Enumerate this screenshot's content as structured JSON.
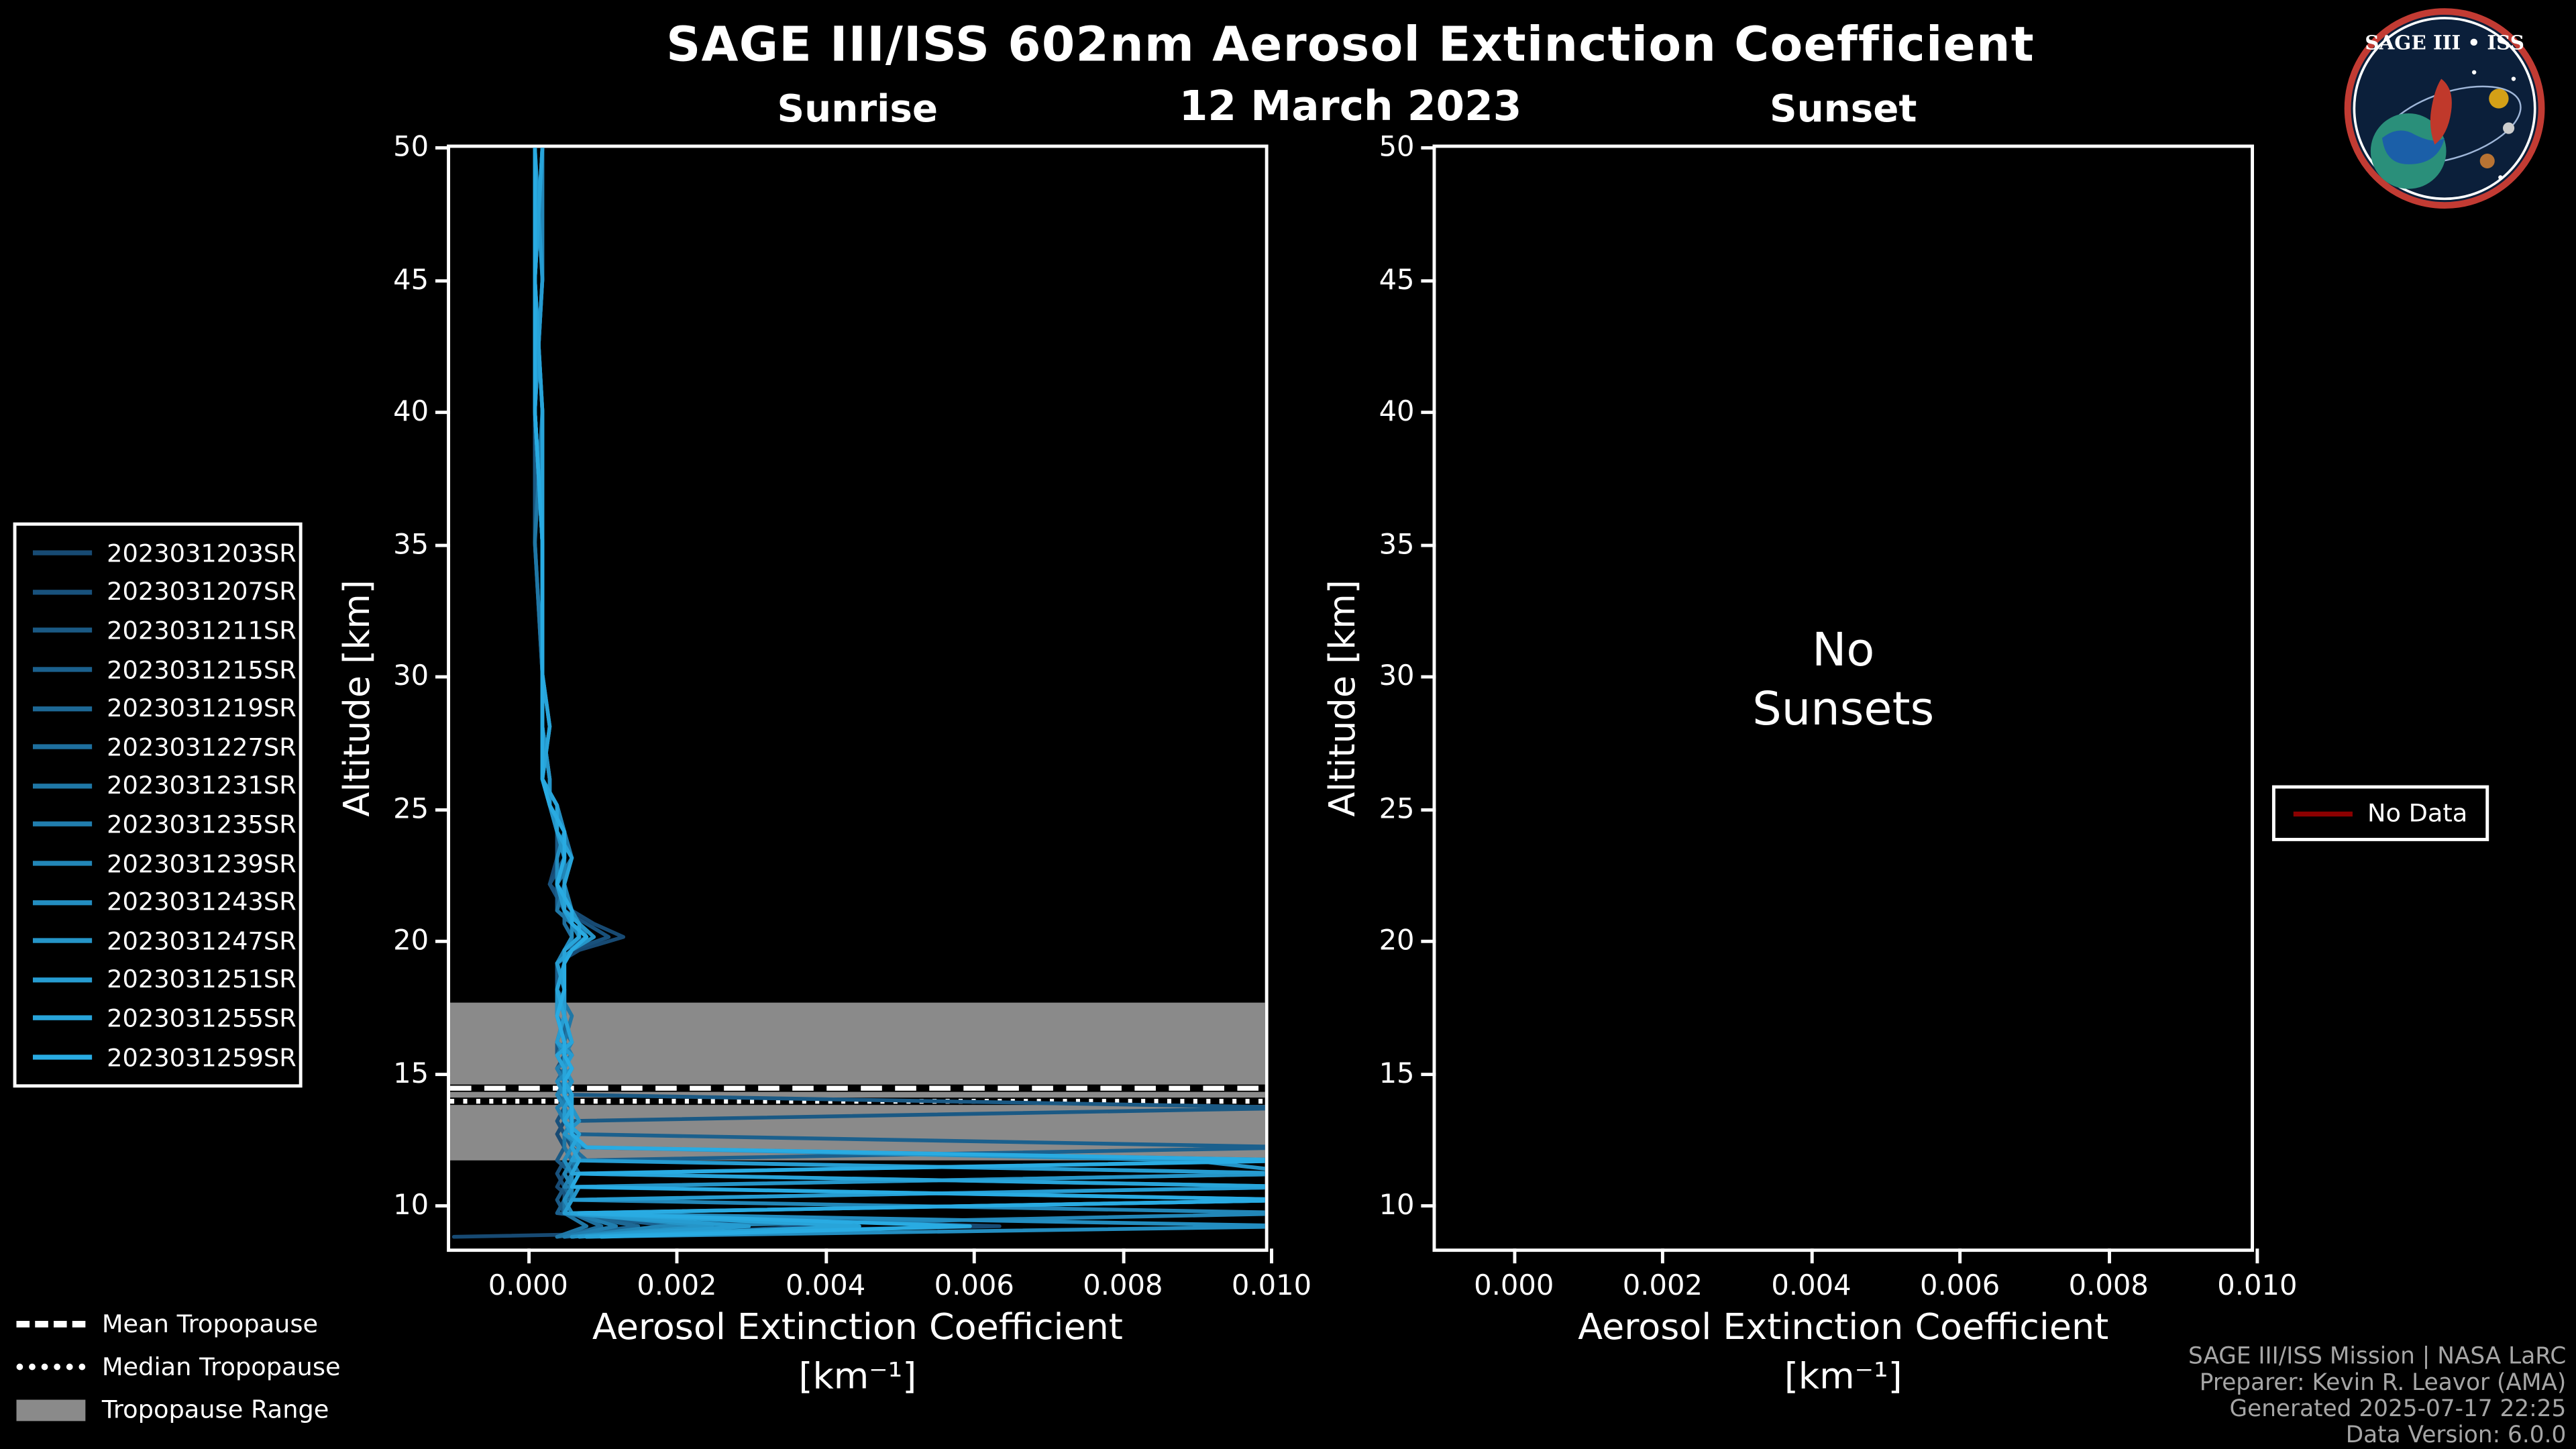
{
  "header": {
    "title": "SAGE III/ISS 602nm Aerosol Extinction Coefficient",
    "date": "12 March 2023"
  },
  "colors": {
    "background": "#000000",
    "text": "#ffffff",
    "footer_text": "#a6a6a6",
    "band": "#8a8a8a",
    "axis": "#ffffff"
  },
  "legends": {
    "tropopause": {
      "mean": "Mean Tropopause",
      "median": "Median Tropopause",
      "range": "Tropopause Range"
    },
    "no_data": {
      "label": "No Data",
      "color": "#8B0000"
    }
  },
  "footer": {
    "line1": "SAGE III/ISS Mission | NASA LaRC",
    "line2": "Preparer: Kevin R. Leavor (AMA)",
    "line3": "Generated 2025-07-17 22:25",
    "line4": "Data Version: 6.0.0"
  },
  "logo": {
    "title": "SAGE III • ISS"
  },
  "chart_data": [
    {
      "id": "sunrise",
      "type": "line",
      "title": "Sunrise",
      "xlabel": "Aerosol Extinction Coefficient",
      "xlabel_units": "[km⁻¹]",
      "ylabel": "Altitude [km]",
      "xlim": [
        -0.00105,
        0.01
      ],
      "ylim": [
        8.15,
        50
      ],
      "xticks": [
        0.0,
        0.002,
        0.004,
        0.006,
        0.008,
        0.01
      ],
      "xtick_labels": [
        "0.000",
        "0.002",
        "0.004",
        "0.006",
        "0.008",
        "0.010"
      ],
      "yticks": [
        10,
        15,
        20,
        25,
        30,
        35,
        40,
        45,
        50
      ],
      "ytick_labels": [
        "10",
        "15",
        "20",
        "25",
        "30",
        "35",
        "40",
        "45",
        "50"
      ],
      "grid": false,
      "ext_scale": 0.0001,
      "alt_grid": [
        50,
        45,
        40,
        35,
        30,
        28,
        26,
        25,
        24,
        23,
        22,
        21,
        20.5,
        20,
        19.5,
        19,
        18,
        17,
        16,
        15.5,
        15,
        14.5,
        14,
        13.5,
        13,
        12.5,
        12,
        11.5,
        11,
        10.5,
        10,
        9.5,
        9,
        8.6
      ],
      "tropopause": {
        "mean_km": 14.25,
        "median_km": 13.75,
        "range_km": [
          11.5,
          17.5
        ]
      },
      "series": [
        {
          "name": "2023031203SR",
          "color": "#174A73",
          "values": [
            2,
            1,
            1,
            1,
            2,
            2,
            2,
            3,
            5,
            4,
            3,
            6,
            9,
            13,
            7,
            4,
            4,
            5,
            4,
            6,
            4,
            5,
            5,
            6,
            5,
            4,
            5,
            6,
            5,
            4,
            6,
            5,
            64,
            -10
          ]
        },
        {
          "name": "2023031207SR",
          "color": "#18517C",
          "values": [
            1,
            1,
            1,
            2,
            2,
            2,
            2,
            3,
            4,
            5,
            3,
            5,
            8,
            11,
            6,
            5,
            4,
            4,
            5,
            5,
            4,
            6,
            5,
            5,
            4,
            5,
            6,
            5,
            4,
            5,
            5,
            6,
            40,
            8
          ]
        },
        {
          "name": "2023031211SR",
          "color": "#1A5984",
          "values": [
            2,
            2,
            1,
            1,
            2,
            2,
            3,
            3,
            4,
            4,
            4,
            5,
            7,
            9,
            6,
            4,
            5,
            5,
            4,
            4,
            5,
            5,
            6,
            106,
            6,
            5,
            5,
            4,
            6,
            5,
            4,
            5,
            30,
            5
          ]
        },
        {
          "name": "2023031215SR",
          "color": "#1B608D",
          "values": [
            1,
            1,
            2,
            2,
            2,
            2,
            2,
            4,
            5,
            5,
            4,
            4,
            6,
            8,
            5,
            4,
            4,
            5,
            5,
            6,
            4,
            5,
            5,
            6,
            5,
            6,
            106,
            7,
            5,
            6,
            5,
            4,
            20,
            6
          ]
        },
        {
          "name": "2023031219SR",
          "color": "#1D6895",
          "values": [
            2,
            1,
            1,
            2,
            2,
            3,
            2,
            3,
            4,
            6,
            4,
            5,
            6,
            7,
            5,
            5,
            4,
            4,
            6,
            5,
            5,
            4,
            6,
            5,
            6,
            5,
            7,
            106,
            6,
            5,
            6,
            5,
            15,
            4
          ]
        },
        {
          "name": "2023031227SR",
          "color": "#1E6F9E",
          "values": [
            1,
            2,
            1,
            2,
            2,
            2,
            3,
            3,
            5,
            5,
            4,
            5,
            5,
            6,
            6,
            4,
            5,
            5,
            4,
            5,
            6,
            5,
            4,
            6,
            5,
            6,
            6,
            8,
            106,
            6,
            5,
            6,
            10,
            5
          ]
        },
        {
          "name": "2023031231SR",
          "color": "#1F77A6",
          "values": [
            2,
            1,
            2,
            1,
            2,
            2,
            2,
            4,
            4,
            5,
            5,
            4,
            6,
            7,
            5,
            5,
            4,
            6,
            5,
            4,
            5,
            6,
            5,
            5,
            6,
            5,
            5,
            6,
            7,
            106,
            5,
            5,
            8,
            4
          ]
        },
        {
          "name": "2023031235SR",
          "color": "#217EAF",
          "values": [
            1,
            1,
            1,
            2,
            2,
            2,
            3,
            3,
            5,
            6,
            4,
            5,
            7,
            8,
            6,
            5,
            5,
            4,
            5,
            6,
            4,
            5,
            6,
            4,
            5,
            6,
            6,
            5,
            6,
            5,
            106,
            6,
            12,
            5
          ]
        },
        {
          "name": "2023031239SR",
          "color": "#2286B7",
          "values": [
            2,
            2,
            1,
            2,
            2,
            3,
            2,
            3,
            4,
            5,
            5,
            6,
            6,
            7,
            5,
            4,
            5,
            5,
            6,
            5,
            5,
            6,
            4,
            5,
            6,
            5,
            7,
            6,
            5,
            6,
            6,
            106,
            18,
            6
          ]
        },
        {
          "name": "2023031243SR",
          "color": "#238DC0",
          "values": [
            1,
            1,
            2,
            2,
            2,
            2,
            2,
            4,
            5,
            4,
            4,
            5,
            6,
            6,
            5,
            5,
            4,
            5,
            4,
            5,
            6,
            4,
            5,
            6,
            5,
            7,
            6,
            5,
            6,
            6,
            5,
            6,
            106,
            8
          ]
        },
        {
          "name": "2023031247SR",
          "color": "#2595C8",
          "values": [
            2,
            1,
            1,
            2,
            2,
            2,
            3,
            3,
            4,
            5,
            4,
            6,
            7,
            9,
            6,
            5,
            4,
            4,
            5,
            5,
            5,
            6,
            5,
            6,
            7,
            5,
            8,
            90,
            106,
            7,
            6,
            5,
            25,
            6
          ]
        },
        {
          "name": "2023031251SR",
          "color": "#269CD1",
          "values": [
            1,
            2,
            1,
            2,
            2,
            2,
            2,
            3,
            5,
            5,
            4,
            5,
            6,
            8,
            6,
            4,
            5,
            5,
            4,
            6,
            5,
            5,
            6,
            5,
            5,
            6,
            7,
            6,
            106,
            106,
            6,
            5,
            30,
            7
          ]
        },
        {
          "name": "2023031255SR",
          "color": "#28A4D9",
          "values": [
            2,
            1,
            2,
            2,
            2,
            3,
            2,
            4,
            4,
            6,
            5,
            5,
            7,
            7,
            5,
            5,
            4,
            5,
            6,
            4,
            5,
            5,
            6,
            6,
            5,
            7,
            6,
            7,
            6,
            106,
            106,
            6,
            45,
            8
          ]
        },
        {
          "name": "2023031259SR",
          "color": "#29ABE2",
          "values": [
            1,
            1,
            1,
            2,
            2,
            2,
            2,
            3,
            5,
            5,
            4,
            6,
            6,
            8,
            6,
            5,
            5,
            4,
            5,
            5,
            6,
            5,
            5,
            6,
            6,
            6,
            8,
            106,
            7,
            6,
            106,
            7,
            60,
            10
          ]
        }
      ]
    },
    {
      "id": "sunset",
      "type": "line",
      "title": "Sunset",
      "xlabel": "Aerosol Extinction Coefficient",
      "xlabel_units": "[km⁻¹]",
      "ylabel": "Altitude [km]",
      "note": "No\nSunsets",
      "xlim": [
        -0.00105,
        0.01
      ],
      "ylim": [
        8.15,
        50
      ],
      "xticks": [
        0.0,
        0.002,
        0.004,
        0.006,
        0.008,
        0.01
      ],
      "xtick_labels": [
        "0.000",
        "0.002",
        "0.004",
        "0.006",
        "0.008",
        "0.010"
      ],
      "yticks": [
        10,
        15,
        20,
        25,
        30,
        35,
        40,
        45,
        50
      ],
      "ytick_labels": [
        "10",
        "15",
        "20",
        "25",
        "30",
        "35",
        "40",
        "45",
        "50"
      ],
      "grid": false,
      "ext_scale": 0.0001,
      "alt_grid": [],
      "series": []
    }
  ]
}
